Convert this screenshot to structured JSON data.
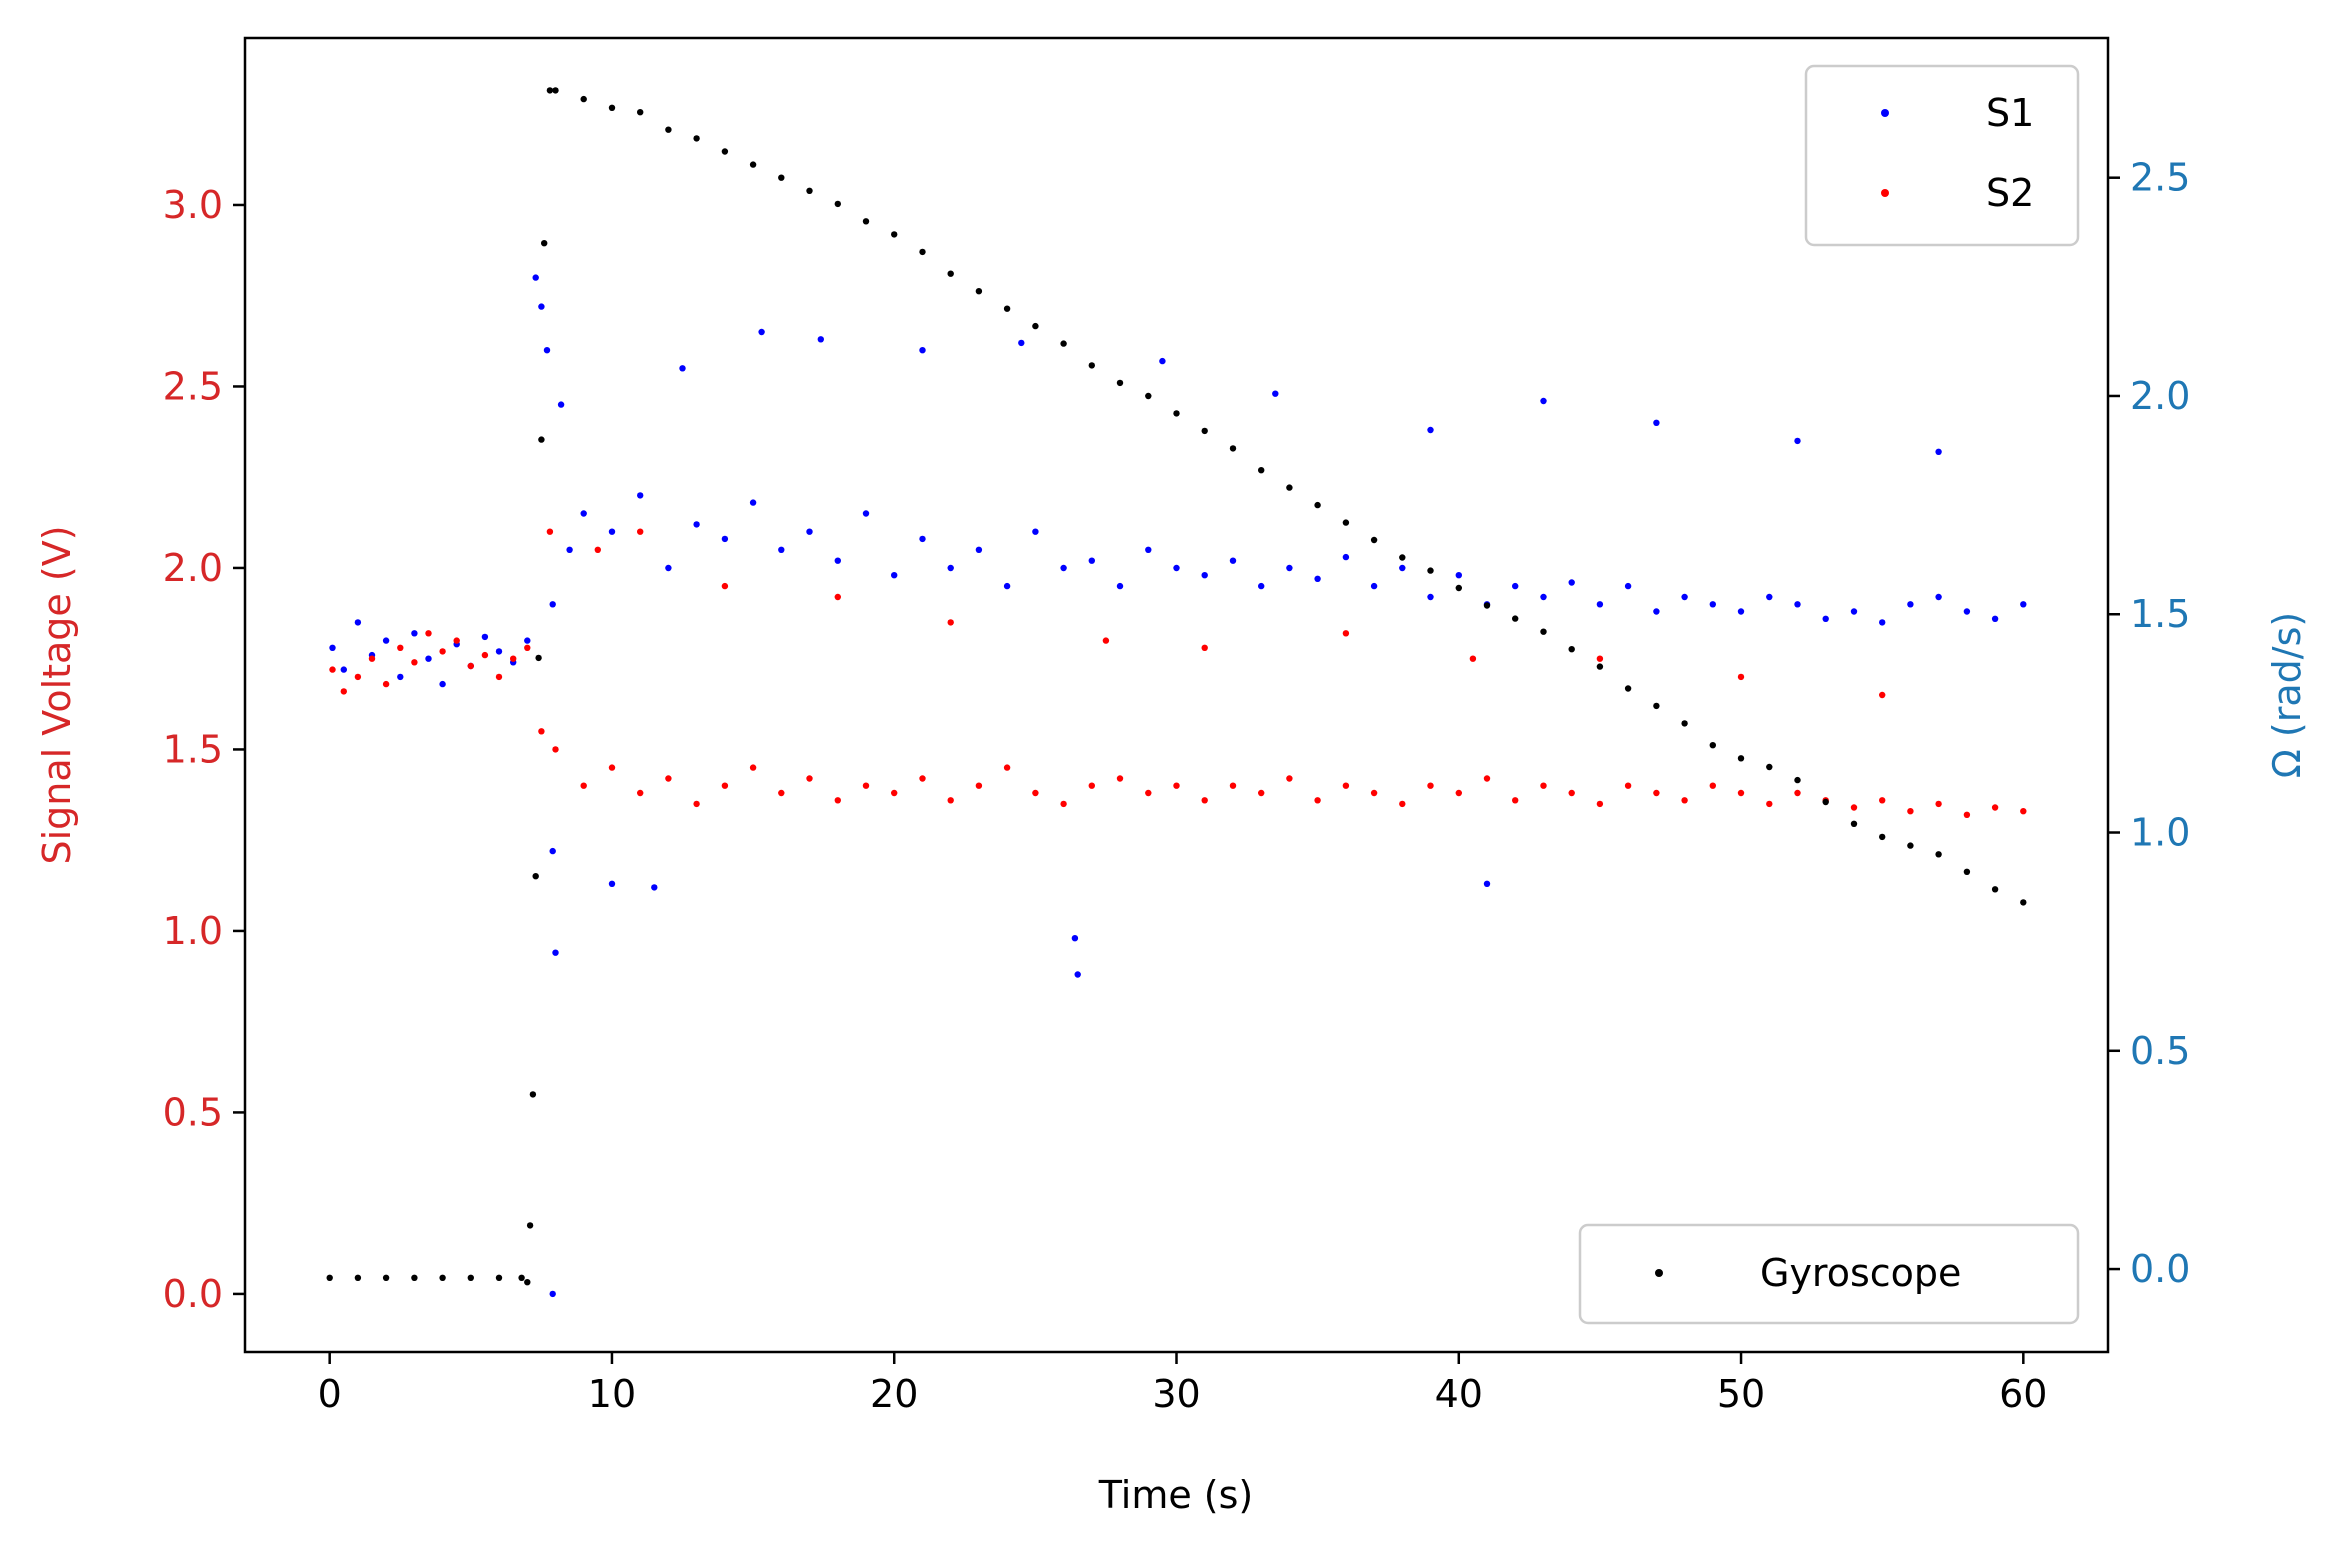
{
  "chart_data": {
    "type": "scatter",
    "title": "",
    "xlabel": "Time (s)",
    "ylabel_left": "Signal Voltage (V)",
    "ylabel_right": "Ω (rad/s)",
    "xlim": [
      -3,
      63
    ],
    "ylim_left": [
      -0.16,
      3.46
    ],
    "ylim_right": [
      -0.19,
      2.82
    ],
    "x_ticks": [
      0,
      10,
      20,
      30,
      40,
      50,
      60
    ],
    "x_tick_labels": [
      "0",
      "10",
      "20",
      "30",
      "40",
      "50",
      "60"
    ],
    "y_left_ticks": [
      0.0,
      0.5,
      1.0,
      1.5,
      2.0,
      2.5,
      3.0
    ],
    "y_left_tick_labels": [
      "0.0",
      "0.5",
      "1.0",
      "1.5",
      "2.0",
      "2.5",
      "3.0"
    ],
    "y_right_ticks": [
      0.0,
      0.5,
      1.0,
      1.5,
      2.0,
      2.5
    ],
    "y_right_tick_labels": [
      "0.0",
      "0.5",
      "1.0",
      "1.5",
      "2.0",
      "2.5"
    ],
    "grid": false,
    "colors": {
      "left_axis": "#d62728",
      "right_axis": "#1f77b4",
      "s1": "#0000ff",
      "s2": "#ff0000",
      "gyroscope": "#000000"
    },
    "legend_upper": {
      "placement": "top-right",
      "entries": [
        "S1",
        "S2"
      ]
    },
    "legend_lower": {
      "placement": "bottom-right",
      "entries": [
        "Gyroscope"
      ]
    },
    "series": [
      {
        "name": "S1",
        "axis": "left",
        "color": "#0000ff",
        "points": [
          [
            0.1,
            1.78
          ],
          [
            0.5,
            1.72
          ],
          [
            1.0,
            1.85
          ],
          [
            1.5,
            1.76
          ],
          [
            2.0,
            1.8
          ],
          [
            2.5,
            1.7
          ],
          [
            3.0,
            1.82
          ],
          [
            3.5,
            1.75
          ],
          [
            4.0,
            1.68
          ],
          [
            4.5,
            1.79
          ],
          [
            5.0,
            1.73
          ],
          [
            5.5,
            1.81
          ],
          [
            6.0,
            1.77
          ],
          [
            6.5,
            1.74
          ],
          [
            7.0,
            1.8
          ],
          [
            7.3,
            2.8
          ],
          [
            7.5,
            2.72
          ],
          [
            7.7,
            2.6
          ],
          [
            7.9,
            1.9
          ],
          [
            8.5,
            2.05
          ],
          [
            9.0,
            2.15
          ],
          [
            10.0,
            2.1
          ],
          [
            11.0,
            2.2
          ],
          [
            12.0,
            2.0
          ],
          [
            13.0,
            2.12
          ],
          [
            14.0,
            2.08
          ],
          [
            15.0,
            2.18
          ],
          [
            16.0,
            2.05
          ],
          [
            17.0,
            2.1
          ],
          [
            18.0,
            2.02
          ],
          [
            19.0,
            2.15
          ],
          [
            20.0,
            1.98
          ],
          [
            21.0,
            2.08
          ],
          [
            22.0,
            2.0
          ],
          [
            23.0,
            2.05
          ],
          [
            24.0,
            1.95
          ],
          [
            25.0,
            2.1
          ],
          [
            26.0,
            2.0
          ],
          [
            26.4,
            0.98
          ],
          [
            26.5,
            0.88
          ],
          [
            27.0,
            2.02
          ],
          [
            28.0,
            1.95
          ],
          [
            29.0,
            2.05
          ],
          [
            30.0,
            2.0
          ],
          [
            31.0,
            1.98
          ],
          [
            32.0,
            2.02
          ],
          [
            33.0,
            1.95
          ],
          [
            34.0,
            2.0
          ],
          [
            35.0,
            1.97
          ],
          [
            36.0,
            2.03
          ],
          [
            37.0,
            1.95
          ],
          [
            38.0,
            2.0
          ],
          [
            39.0,
            1.92
          ],
          [
            40.0,
            1.98
          ],
          [
            41.0,
            1.9
          ],
          [
            41.0,
            1.13
          ],
          [
            42.0,
            1.95
          ],
          [
            43.0,
            1.92
          ],
          [
            44.0,
            1.96
          ],
          [
            45.0,
            1.9
          ],
          [
            46.0,
            1.95
          ],
          [
            47.0,
            1.88
          ],
          [
            48.0,
            1.92
          ],
          [
            49.0,
            1.9
          ],
          [
            50.0,
            1.88
          ],
          [
            51.0,
            1.92
          ],
          [
            52.0,
            1.9
          ],
          [
            53.0,
            1.86
          ],
          [
            54.0,
            1.88
          ],
          [
            55.0,
            1.85
          ],
          [
            56.0,
            1.9
          ],
          [
            57.0,
            1.92
          ],
          [
            58.0,
            1.88
          ],
          [
            59.0,
            1.86
          ],
          [
            60.0,
            1.9
          ],
          [
            8.2,
            2.45
          ],
          [
            12.5,
            2.55
          ],
          [
            15.3,
            2.65
          ],
          [
            17.4,
            2.63
          ],
          [
            21.0,
            2.6
          ],
          [
            24.5,
            2.62
          ],
          [
            29.5,
            2.57
          ],
          [
            33.5,
            2.48
          ],
          [
            39.0,
            2.38
          ],
          [
            43.0,
            2.46
          ],
          [
            47.0,
            2.4
          ],
          [
            52.0,
            2.35
          ],
          [
            57.0,
            2.32
          ],
          [
            7.9,
            1.22
          ],
          [
            10.0,
            1.13
          ],
          [
            11.5,
            1.12
          ],
          [
            8.0,
            0.94
          ],
          [
            7.9,
            0.0
          ]
        ]
      },
      {
        "name": "S2",
        "axis": "left",
        "color": "#ff0000",
        "points": [
          [
            0.1,
            1.72
          ],
          [
            0.5,
            1.66
          ],
          [
            1.0,
            1.7
          ],
          [
            1.5,
            1.75
          ],
          [
            2.0,
            1.68
          ],
          [
            2.5,
            1.78
          ],
          [
            3.0,
            1.74
          ],
          [
            3.5,
            1.82
          ],
          [
            4.0,
            1.77
          ],
          [
            4.5,
            1.8
          ],
          [
            5.0,
            1.73
          ],
          [
            5.5,
            1.76
          ],
          [
            6.0,
            1.7
          ],
          [
            6.5,
            1.75
          ],
          [
            7.0,
            1.78
          ],
          [
            7.5,
            1.55
          ],
          [
            8.0,
            1.5
          ],
          [
            9.0,
            1.4
          ],
          [
            10.0,
            1.45
          ],
          [
            11.0,
            1.38
          ],
          [
            12.0,
            1.42
          ],
          [
            13.0,
            1.35
          ],
          [
            14.0,
            1.4
          ],
          [
            15.0,
            1.45
          ],
          [
            16.0,
            1.38
          ],
          [
            17.0,
            1.42
          ],
          [
            18.0,
            1.36
          ],
          [
            19.0,
            1.4
          ],
          [
            20.0,
            1.38
          ],
          [
            21.0,
            1.42
          ],
          [
            22.0,
            1.36
          ],
          [
            23.0,
            1.4
          ],
          [
            24.0,
            1.45
          ],
          [
            25.0,
            1.38
          ],
          [
            26.0,
            1.35
          ],
          [
            27.0,
            1.4
          ],
          [
            28.0,
            1.42
          ],
          [
            29.0,
            1.38
          ],
          [
            30.0,
            1.4
          ],
          [
            31.0,
            1.36
          ],
          [
            32.0,
            1.4
          ],
          [
            33.0,
            1.38
          ],
          [
            34.0,
            1.42
          ],
          [
            35.0,
            1.36
          ],
          [
            36.0,
            1.4
          ],
          [
            37.0,
            1.38
          ],
          [
            38.0,
            1.35
          ],
          [
            39.0,
            1.4
          ],
          [
            40.0,
            1.38
          ],
          [
            41.0,
            1.42
          ],
          [
            42.0,
            1.36
          ],
          [
            43.0,
            1.4
          ],
          [
            44.0,
            1.38
          ],
          [
            45.0,
            1.35
          ],
          [
            46.0,
            1.4
          ],
          [
            47.0,
            1.38
          ],
          [
            48.0,
            1.36
          ],
          [
            49.0,
            1.4
          ],
          [
            50.0,
            1.38
          ],
          [
            51.0,
            1.35
          ],
          [
            52.0,
            1.38
          ],
          [
            53.0,
            1.36
          ],
          [
            54.0,
            1.34
          ],
          [
            55.0,
            1.36
          ],
          [
            56.0,
            1.33
          ],
          [
            57.0,
            1.35
          ],
          [
            58.0,
            1.32
          ],
          [
            59.0,
            1.34
          ],
          [
            60.0,
            1.33
          ],
          [
            7.8,
            2.1
          ],
          [
            9.5,
            2.05
          ],
          [
            11.0,
            2.1
          ],
          [
            14.0,
            1.95
          ],
          [
            18.0,
            1.92
          ],
          [
            22.0,
            1.85
          ],
          [
            27.5,
            1.8
          ],
          [
            31.0,
            1.78
          ],
          [
            36.0,
            1.82
          ],
          [
            40.5,
            1.75
          ],
          [
            45.0,
            1.75
          ],
          [
            50.0,
            1.7
          ],
          [
            55.0,
            1.65
          ]
        ]
      },
      {
        "name": "Gyroscope",
        "axis": "right",
        "color": "#000000",
        "points": [
          [
            0.0,
            -0.02
          ],
          [
            1.0,
            -0.02
          ],
          [
            2.0,
            -0.02
          ],
          [
            3.0,
            -0.02
          ],
          [
            4.0,
            -0.02
          ],
          [
            5.0,
            -0.02
          ],
          [
            6.0,
            -0.02
          ],
          [
            6.8,
            -0.02
          ],
          [
            7.0,
            -0.03
          ],
          [
            7.1,
            0.1
          ],
          [
            7.2,
            0.4
          ],
          [
            7.3,
            0.9
          ],
          [
            7.4,
            1.4
          ],
          [
            7.5,
            1.9
          ],
          [
            7.6,
            2.35
          ],
          [
            7.8,
            2.7
          ],
          [
            8.0,
            2.7
          ],
          [
            9.0,
            2.68
          ],
          [
            10.0,
            2.66
          ],
          [
            11.0,
            2.65
          ],
          [
            12.0,
            2.61
          ],
          [
            13.0,
            2.59
          ],
          [
            14.0,
            2.56
          ],
          [
            15.0,
            2.53
          ],
          [
            16.0,
            2.5
          ],
          [
            17.0,
            2.47
          ],
          [
            18.0,
            2.44
          ],
          [
            19.0,
            2.4
          ],
          [
            20.0,
            2.37
          ],
          [
            21.0,
            2.33
          ],
          [
            22.0,
            2.28
          ],
          [
            23.0,
            2.24
          ],
          [
            24.0,
            2.2
          ],
          [
            25.0,
            2.16
          ],
          [
            26.0,
            2.12
          ],
          [
            27.0,
            2.07
          ],
          [
            28.0,
            2.03
          ],
          [
            29.0,
            2.0
          ],
          [
            30.0,
            1.96
          ],
          [
            31.0,
            1.92
          ],
          [
            32.0,
            1.88
          ],
          [
            33.0,
            1.83
          ],
          [
            34.0,
            1.79
          ],
          [
            35.0,
            1.75
          ],
          [
            36.0,
            1.71
          ],
          [
            37.0,
            1.67
          ],
          [
            38.0,
            1.63
          ],
          [
            39.0,
            1.6
          ],
          [
            40.0,
            1.56
          ],
          [
            41.0,
            1.52
          ],
          [
            42.0,
            1.49
          ],
          [
            43.0,
            1.46
          ],
          [
            44.0,
            1.42
          ],
          [
            45.0,
            1.38
          ],
          [
            46.0,
            1.33
          ],
          [
            47.0,
            1.29
          ],
          [
            48.0,
            1.25
          ],
          [
            49.0,
            1.2
          ],
          [
            50.0,
            1.17
          ],
          [
            51.0,
            1.15
          ],
          [
            52.0,
            1.12
          ],
          [
            53.0,
            1.07
          ],
          [
            54.0,
            1.02
          ],
          [
            55.0,
            0.99
          ],
          [
            56.0,
            0.97
          ],
          [
            57.0,
            0.95
          ],
          [
            58.0,
            0.91
          ],
          [
            59.0,
            0.87
          ],
          [
            60.0,
            0.84
          ]
        ]
      }
    ]
  }
}
